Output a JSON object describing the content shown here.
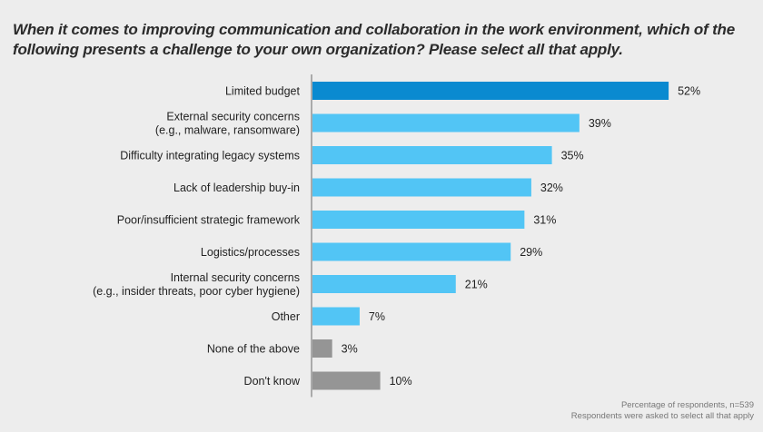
{
  "chart_data": {
    "type": "bar",
    "orientation": "horizontal",
    "title": "When it comes to improving communication and collaboration in the work environment, which of the following presents a challenge to your own organization? Please select all that apply.",
    "categories": [
      [
        "Limited budget"
      ],
      [
        "External security concerns",
        "(e.g., malware, ransomware)"
      ],
      [
        "Difficulty integrating legacy systems"
      ],
      [
        "Lack of leadership buy-in"
      ],
      [
        "Poor/insufficient strategic framework"
      ],
      [
        "Logistics/processes"
      ],
      [
        "Internal security concerns",
        "(e.g., insider threats, poor cyber hygiene)"
      ],
      [
        "Other"
      ],
      [
        "None of the above"
      ],
      [
        "Don't know"
      ]
    ],
    "values": [
      52,
      39,
      35,
      32,
      31,
      29,
      21,
      7,
      3,
      10
    ],
    "labels": [
      "52%",
      "39%",
      "35%",
      "32%",
      "31%",
      "29%",
      "21%",
      "7%",
      "3%",
      "10%"
    ],
    "colors": [
      "#0a8ad0",
      "#52c5f5",
      "#52c5f5",
      "#52c5f5",
      "#52c5f5",
      "#52c5f5",
      "#52c5f5",
      "#52c5f5",
      "#959595",
      "#959595"
    ],
    "xlim": [
      0,
      60
    ],
    "grid": false,
    "legend": "none"
  },
  "notes": [
    "Percentage of respondents, n=539",
    "Respondents were asked to select all that apply"
  ]
}
